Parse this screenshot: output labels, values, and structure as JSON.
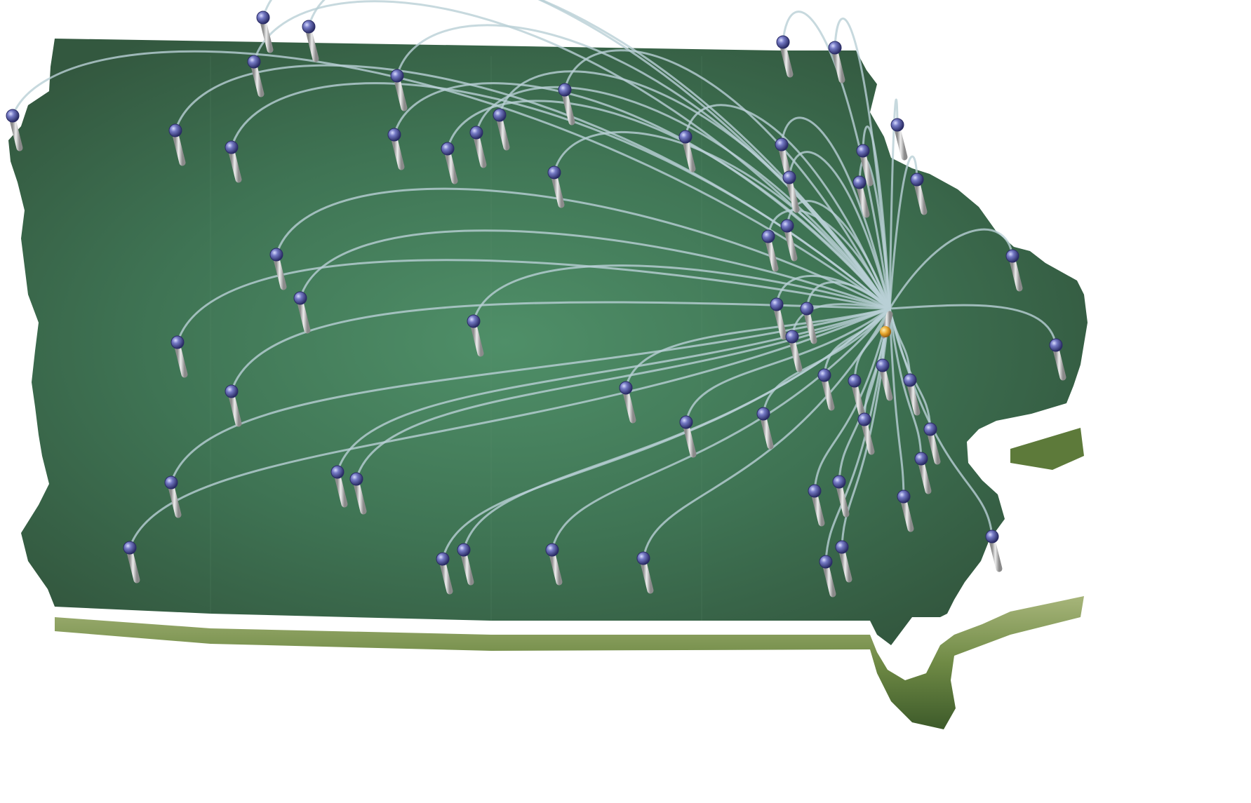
{
  "map": {
    "state_colors": {
      "face_center": "#4f8f68",
      "face_mid": "#3f7454",
      "face_edge": "#335a40",
      "side_light": "#9aa86a",
      "side_dark": "#3f5f2c",
      "arc": "#b9d0d6",
      "pin_stem": "#c7c7c7",
      "pin_head": "#6e73b8",
      "pin_head_dark": "#2b2d66",
      "hub": "#e7a52b"
    },
    "hub": {
      "name": "hub-marker",
      "icon": "orange-sphere"
    },
    "pin_icon": "pushpin-sphere"
  }
}
